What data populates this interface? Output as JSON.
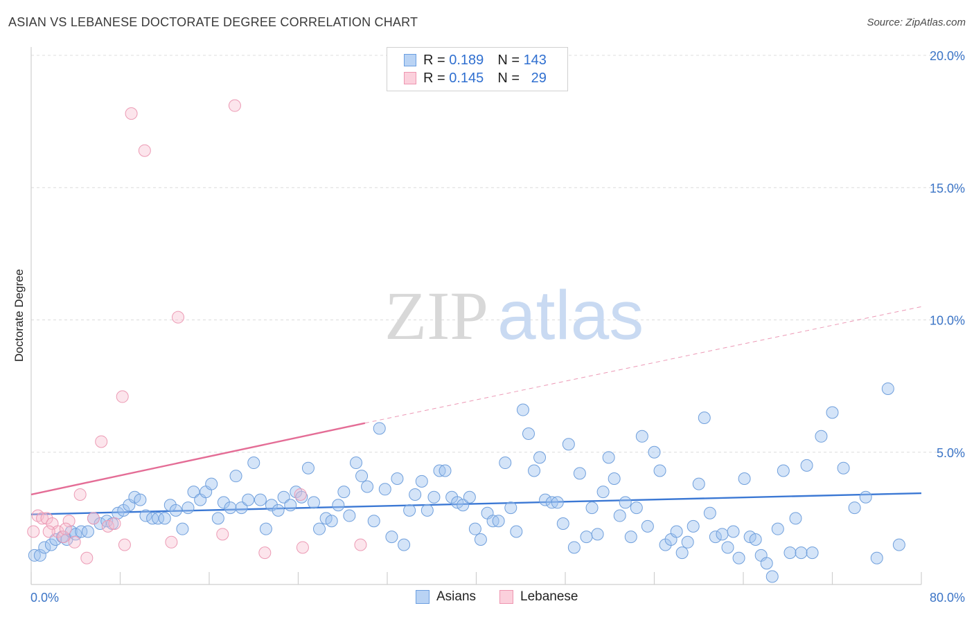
{
  "header": {
    "title": "ASIAN VS LEBANESE DOCTORATE DEGREE CORRELATION CHART",
    "source": "Source: ZipAtlas.com"
  },
  "watermark": {
    "zip": "ZIP",
    "atlas": "atlas"
  },
  "legend_top": {
    "rows": [
      {
        "r_label": "R =",
        "r_value": "0.189",
        "n_label": "N =",
        "n_value": "143",
        "color": "#a8c8f0"
      },
      {
        "r_label": "R =",
        "r_value": "0.145",
        "n_label": "N =",
        "n_value": "29",
        "color": "#f7b7c9"
      }
    ]
  },
  "legend_bottom": {
    "items": [
      {
        "label": "Asians",
        "color": "#a8c8f0"
      },
      {
        "label": "Lebanese",
        "color": "#f7b7c9"
      }
    ]
  },
  "chart_data": {
    "type": "scatter",
    "title": "ASIAN VS LEBANESE DOCTORATE DEGREE CORRELATION CHART",
    "xlabel": "",
    "ylabel": "Doctorate Degree",
    "xlim": [
      0,
      80
    ],
    "ylim": [
      0,
      20
    ],
    "x_tick_labels": [
      "0.0%",
      "80.0%"
    ],
    "y_ticks": [
      5,
      10,
      15,
      20
    ],
    "y_tick_labels": [
      "5.0%",
      "10.0%",
      "15.0%",
      "20.0%"
    ],
    "grid": true,
    "legend_placement": "top-center",
    "colors": {
      "asians": "#3b78d4",
      "lebanese": "#e46d96"
    },
    "series": [
      {
        "name": "Asians",
        "trendline": {
          "x": [
            0,
            80
          ],
          "y": [
            2.65,
            3.45
          ]
        },
        "points": [
          [
            0.3,
            1.1
          ],
          [
            0.8,
            1.1
          ],
          [
            1.2,
            1.4
          ],
          [
            1.8,
            1.5
          ],
          [
            2.2,
            1.7
          ],
          [
            2.8,
            1.8
          ],
          [
            3.2,
            1.7
          ],
          [
            3.6,
            2.0
          ],
          [
            4.0,
            1.9
          ],
          [
            4.5,
            2.0
          ],
          [
            5.1,
            2.0
          ],
          [
            5.6,
            2.5
          ],
          [
            6.2,
            2.3
          ],
          [
            6.8,
            2.4
          ],
          [
            7.3,
            2.3
          ],
          [
            7.8,
            2.7
          ],
          [
            8.3,
            2.8
          ],
          [
            8.8,
            3.0
          ],
          [
            9.3,
            3.3
          ],
          [
            9.8,
            3.2
          ],
          [
            10.3,
            2.6
          ],
          [
            10.9,
            2.5
          ],
          [
            11.4,
            2.5
          ],
          [
            12.0,
            2.5
          ],
          [
            12.5,
            3.0
          ],
          [
            13.0,
            2.8
          ],
          [
            13.6,
            2.1
          ],
          [
            14.1,
            2.9
          ],
          [
            14.6,
            3.5
          ],
          [
            15.2,
            3.2
          ],
          [
            15.7,
            3.5
          ],
          [
            16.2,
            3.8
          ],
          [
            16.8,
            2.5
          ],
          [
            17.3,
            3.1
          ],
          [
            17.9,
            2.9
          ],
          [
            18.4,
            4.1
          ],
          [
            18.9,
            2.9
          ],
          [
            19.5,
            3.2
          ],
          [
            20.0,
            4.6
          ],
          [
            20.6,
            3.2
          ],
          [
            21.1,
            2.1
          ],
          [
            21.6,
            3.0
          ],
          [
            22.2,
            2.8
          ],
          [
            22.7,
            3.3
          ],
          [
            23.3,
            3.0
          ],
          [
            23.8,
            3.5
          ],
          [
            24.3,
            3.3
          ],
          [
            24.9,
            4.4
          ],
          [
            25.4,
            3.1
          ],
          [
            25.9,
            2.1
          ],
          [
            26.5,
            2.5
          ],
          [
            27.0,
            2.4
          ],
          [
            27.6,
            3.0
          ],
          [
            28.1,
            3.5
          ],
          [
            28.6,
            2.6
          ],
          [
            29.2,
            4.6
          ],
          [
            29.7,
            4.1
          ],
          [
            30.2,
            3.7
          ],
          [
            30.8,
            2.4
          ],
          [
            31.3,
            5.9
          ],
          [
            31.8,
            3.6
          ],
          [
            32.4,
            1.8
          ],
          [
            32.9,
            4.0
          ],
          [
            33.5,
            1.5
          ],
          [
            34.0,
            2.8
          ],
          [
            34.5,
            3.4
          ],
          [
            35.1,
            3.9
          ],
          [
            35.6,
            2.8
          ],
          [
            36.2,
            3.3
          ],
          [
            36.7,
            4.3
          ],
          [
            37.2,
            4.3
          ],
          [
            37.8,
            3.3
          ],
          [
            38.3,
            3.1
          ],
          [
            38.8,
            3.0
          ],
          [
            39.4,
            3.3
          ],
          [
            39.9,
            2.1
          ],
          [
            40.4,
            1.7
          ],
          [
            41.0,
            2.7
          ],
          [
            41.5,
            2.4
          ],
          [
            42.0,
            2.4
          ],
          [
            42.6,
            4.6
          ],
          [
            43.1,
            2.9
          ],
          [
            43.6,
            2.0
          ],
          [
            44.2,
            6.6
          ],
          [
            44.7,
            5.7
          ],
          [
            45.2,
            4.3
          ],
          [
            45.7,
            4.8
          ],
          [
            46.2,
            3.2
          ],
          [
            46.8,
            3.1
          ],
          [
            47.3,
            3.1
          ],
          [
            47.8,
            2.3
          ],
          [
            48.3,
            5.3
          ],
          [
            48.8,
            1.4
          ],
          [
            49.3,
            4.2
          ],
          [
            49.9,
            1.8
          ],
          [
            50.4,
            2.9
          ],
          [
            50.9,
            1.9
          ],
          [
            51.4,
            3.5
          ],
          [
            51.9,
            4.8
          ],
          [
            52.4,
            4.0
          ],
          [
            52.9,
            2.6
          ],
          [
            53.4,
            3.1
          ],
          [
            53.9,
            1.8
          ],
          [
            54.4,
            2.9
          ],
          [
            54.9,
            5.6
          ],
          [
            55.4,
            2.2
          ],
          [
            56.0,
            5.0
          ],
          [
            56.5,
            4.3
          ],
          [
            57.0,
            1.5
          ],
          [
            57.5,
            1.7
          ],
          [
            58.0,
            2.0
          ],
          [
            58.5,
            1.2
          ],
          [
            59.0,
            1.6
          ],
          [
            59.5,
            2.2
          ],
          [
            60.0,
            3.8
          ],
          [
            60.5,
            6.3
          ],
          [
            61.0,
            2.7
          ],
          [
            61.5,
            1.8
          ],
          [
            62.1,
            1.9
          ],
          [
            62.6,
            1.4
          ],
          [
            63.1,
            2.0
          ],
          [
            63.6,
            1.0
          ],
          [
            64.1,
            4.0
          ],
          [
            64.6,
            1.8
          ],
          [
            65.1,
            1.7
          ],
          [
            65.6,
            1.1
          ],
          [
            66.1,
            0.8
          ],
          [
            66.6,
            0.3
          ],
          [
            67.1,
            2.1
          ],
          [
            67.6,
            4.3
          ],
          [
            68.2,
            1.2
          ],
          [
            68.7,
            2.5
          ],
          [
            69.2,
            1.2
          ],
          [
            69.7,
            4.5
          ],
          [
            70.2,
            1.2
          ],
          [
            71.0,
            5.6
          ],
          [
            72.0,
            6.5
          ],
          [
            73.0,
            4.4
          ],
          [
            74.0,
            2.9
          ],
          [
            75.0,
            3.3
          ],
          [
            76.0,
            1.0
          ],
          [
            77.0,
            7.4
          ],
          [
            78.0,
            1.5
          ]
        ]
      },
      {
        "name": "Lebanese",
        "trendline": {
          "x": [
            0,
            30
          ],
          "y": [
            3.4,
            6.1
          ],
          "x_ext": [
            30,
            80
          ],
          "y_ext": [
            6.1,
            10.5
          ]
        },
        "points": [
          [
            0.2,
            2.0
          ],
          [
            0.6,
            2.6
          ],
          [
            1.0,
            2.5
          ],
          [
            1.4,
            2.5
          ],
          [
            1.9,
            2.3
          ],
          [
            2.4,
            2.0
          ],
          [
            2.9,
            1.8
          ],
          [
            3.4,
            2.4
          ],
          [
            3.9,
            1.6
          ],
          [
            4.4,
            3.4
          ],
          [
            5.0,
            1.0
          ],
          [
            5.6,
            2.5
          ],
          [
            6.3,
            5.4
          ],
          [
            6.9,
            2.2
          ],
          [
            7.5,
            2.3
          ],
          [
            8.2,
            7.1
          ],
          [
            8.4,
            1.5
          ],
          [
            9.0,
            17.8
          ],
          [
            10.2,
            16.4
          ],
          [
            12.6,
            1.6
          ],
          [
            13.2,
            10.1
          ],
          [
            17.2,
            1.9
          ],
          [
            18.3,
            18.1
          ],
          [
            21.0,
            1.2
          ],
          [
            24.2,
            3.4
          ],
          [
            24.4,
            1.4
          ],
          [
            29.6,
            1.5
          ],
          [
            1.6,
            2.0
          ],
          [
            3.1,
            2.1
          ]
        ]
      }
    ]
  }
}
